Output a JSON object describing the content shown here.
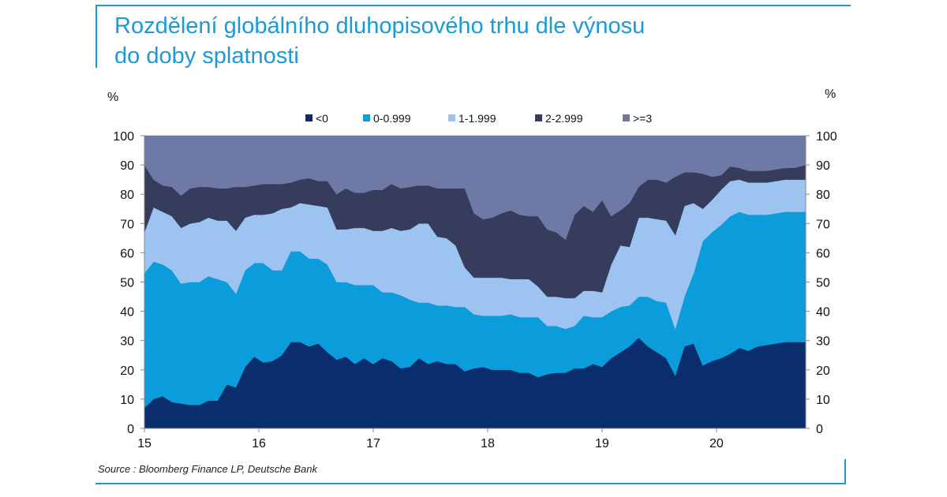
{
  "title_line1": "Rozdělení globálního dluhopisového trhu dle výnosu",
  "title_line2": "do doby splatnosti",
  "source": "Source : Bloomberg Finance LP, Deutsche Bank",
  "chart_data": {
    "type": "area",
    "stacked": true,
    "y_unit_left": "%",
    "y_unit_right": "%",
    "xlim": [
      15,
      20.78
    ],
    "ylim": [
      0,
      100
    ],
    "x_ticks": [
      "15",
      "16",
      "17",
      "18",
      "19",
      "20"
    ],
    "y_ticks": [
      "0",
      "10",
      "20",
      "30",
      "40",
      "50",
      "60",
      "70",
      "80",
      "90",
      "100"
    ],
    "legend_position": "top",
    "grid": false,
    "x": [
      15.0,
      15.08,
      15.16,
      15.24,
      15.32,
      15.4,
      15.48,
      15.56,
      15.64,
      15.72,
      15.8,
      15.88,
      15.96,
      16.04,
      16.12,
      16.2,
      16.28,
      16.36,
      16.44,
      16.52,
      16.6,
      16.68,
      16.76,
      16.84,
      16.92,
      17.0,
      17.08,
      17.16,
      17.24,
      17.32,
      17.4,
      17.48,
      17.56,
      17.64,
      17.72,
      17.8,
      17.88,
      17.96,
      18.04,
      18.12,
      18.2,
      18.28,
      18.36,
      18.44,
      18.52,
      18.6,
      18.68,
      18.76,
      18.84,
      18.92,
      19.0,
      19.08,
      19.16,
      19.24,
      19.32,
      19.4,
      19.48,
      19.56,
      19.64,
      19.72,
      19.8,
      19.88,
      19.96,
      20.04,
      20.12,
      20.2,
      20.28,
      20.36,
      20.44,
      20.52,
      20.6,
      20.68,
      20.78
    ],
    "series": [
      {
        "name": "<0",
        "color": "#0a2d6e",
        "values": [
          7,
          10,
          11,
          9,
          8.5,
          8,
          8,
          9.5,
          9.5,
          15,
          14,
          21,
          24.5,
          22.5,
          23,
          25,
          29.5,
          29.5,
          28,
          29,
          26,
          23.5,
          24.5,
          22,
          24,
          22,
          24,
          23,
          20.5,
          21,
          24,
          22,
          23,
          22,
          22,
          19.5,
          20.5,
          21,
          20,
          20,
          20,
          19,
          19,
          17.5,
          18.5,
          19,
          19,
          20.5,
          20.5,
          22,
          21,
          24,
          26,
          28,
          31,
          28,
          26,
          24,
          18,
          28,
          29,
          21.5,
          23,
          24,
          25.5,
          27.5,
          26.5,
          28,
          28.5,
          29,
          29.5,
          29.5,
          29.5
        ]
      },
      {
        "name": "0-0.999",
        "color": "#0b9ddb",
        "values": [
          46,
          47,
          45,
          45,
          41,
          42,
          42,
          42.5,
          41.5,
          35,
          32,
          33,
          32,
          34,
          31,
          29,
          31,
          31,
          30,
          29,
          30,
          26.5,
          25.5,
          27,
          25,
          27,
          22.5,
          23.5,
          25,
          23,
          19,
          21,
          19,
          20,
          19.5,
          22,
          18.5,
          17.5,
          18.5,
          18.5,
          19,
          19,
          19,
          20.5,
          16.5,
          16,
          15,
          14.5,
          18,
          16,
          17,
          16,
          15.5,
          14,
          14,
          17,
          17.5,
          19,
          16,
          17,
          24,
          42.5,
          44,
          45.5,
          47,
          46.5,
          46.5,
          45,
          44.5,
          44.5,
          44.5,
          44.5,
          44.5
        ]
      },
      {
        "name": "1-1.999",
        "color": "#9dc3f1",
        "values": [
          14,
          18.5,
          18,
          18.5,
          19,
          20,
          20.5,
          20,
          20,
          21,
          21.5,
          18,
          16.5,
          16.5,
          19.5,
          21,
          15,
          16.5,
          18.5,
          18,
          19.5,
          18,
          18,
          19.5,
          19.5,
          18.5,
          21,
          22,
          22,
          24,
          27,
          27,
          23.5,
          23,
          21,
          13.5,
          12.5,
          13,
          13,
          13,
          12,
          13,
          13,
          10.5,
          10,
          10,
          10.5,
          9.5,
          8.5,
          9,
          8.5,
          16,
          21,
          20,
          27,
          27,
          28,
          28,
          32,
          31,
          24,
          11,
          11,
          12,
          12,
          11,
          11,
          11,
          11,
          11,
          11,
          11,
          11
        ]
      },
      {
        "name": "2-2.999",
        "color": "#363c5c",
        "values": [
          23,
          9.5,
          9,
          10,
          11,
          12,
          12,
          10.5,
          11,
          11,
          15,
          10.5,
          10,
          10.5,
          10,
          8.5,
          8.5,
          8,
          9,
          8.5,
          9,
          12,
          14,
          12,
          12,
          14,
          14,
          15,
          14.5,
          14.5,
          13,
          13,
          16.5,
          17,
          19.5,
          27,
          22,
          20,
          20.5,
          22,
          23.5,
          22,
          21.5,
          24,
          23,
          22,
          20,
          28.5,
          29,
          27,
          31.5,
          16.5,
          12,
          15,
          10.5,
          13,
          13.5,
          13,
          20,
          11.5,
          10.5,
          12,
          8,
          5,
          5,
          4,
          4,
          4,
          4,
          4,
          4,
          4,
          5
        ]
      },
      {
        "name": ">=3",
        "color": "#6e79a6",
        "values": [
          10,
          15,
          17,
          17.5,
          20.5,
          18,
          17.5,
          17.5,
          18,
          18,
          17.5,
          17.5,
          17,
          16.5,
          16.5,
          16.5,
          16,
          15,
          14.5,
          15.5,
          15.5,
          20,
          18,
          19.5,
          19.5,
          18.5,
          18.5,
          16.5,
          18,
          17.5,
          17,
          17,
          18,
          18,
          18,
          18,
          26.5,
          28.5,
          28,
          26.5,
          25.5,
          27,
          27.5,
          27.5,
          32,
          33,
          35.5,
          27,
          24,
          26,
          22,
          27.5,
          25.5,
          23,
          17.5,
          15,
          15,
          16,
          14,
          12.5,
          12.5,
          13,
          14,
          13.5,
          10.5,
          11,
          12,
          12,
          12,
          11.5,
          11,
          11,
          10
        ]
      }
    ]
  }
}
